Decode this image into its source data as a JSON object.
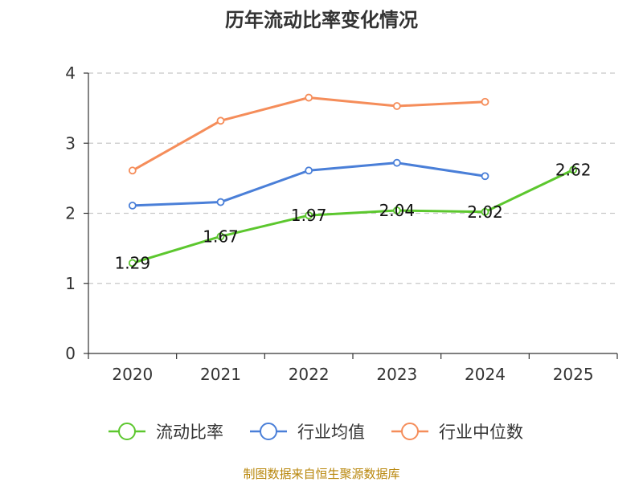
{
  "chart_data": {
    "type": "line",
    "title": "历年流动比率变化情况",
    "categories": [
      "2020",
      "2021",
      "2022",
      "2023",
      "2024",
      "2025"
    ],
    "y_ticks": [
      "0",
      "1",
      "2",
      "3",
      "4"
    ],
    "ylim": [
      0,
      4
    ],
    "grid": true,
    "legend_position": "bottom",
    "series": [
      {
        "name": "流动比率",
        "color": "#5cc72e",
        "values": [
          1.29,
          1.67,
          1.97,
          2.04,
          2.02,
          2.62
        ],
        "labels": [
          "1.29",
          "1.67",
          "1.97",
          "2.04",
          "2.02",
          "2.62"
        ]
      },
      {
        "name": "行业均值",
        "color": "#4a7fd8",
        "values": [
          2.11,
          2.16,
          2.61,
          2.72,
          2.53,
          null
        ]
      },
      {
        "name": "行业中位数",
        "color": "#f58d5a",
        "values": [
          2.61,
          3.32,
          3.65,
          3.53,
          3.59,
          null
        ]
      }
    ]
  },
  "source_text": "制图数据来自恒生聚源数据库"
}
